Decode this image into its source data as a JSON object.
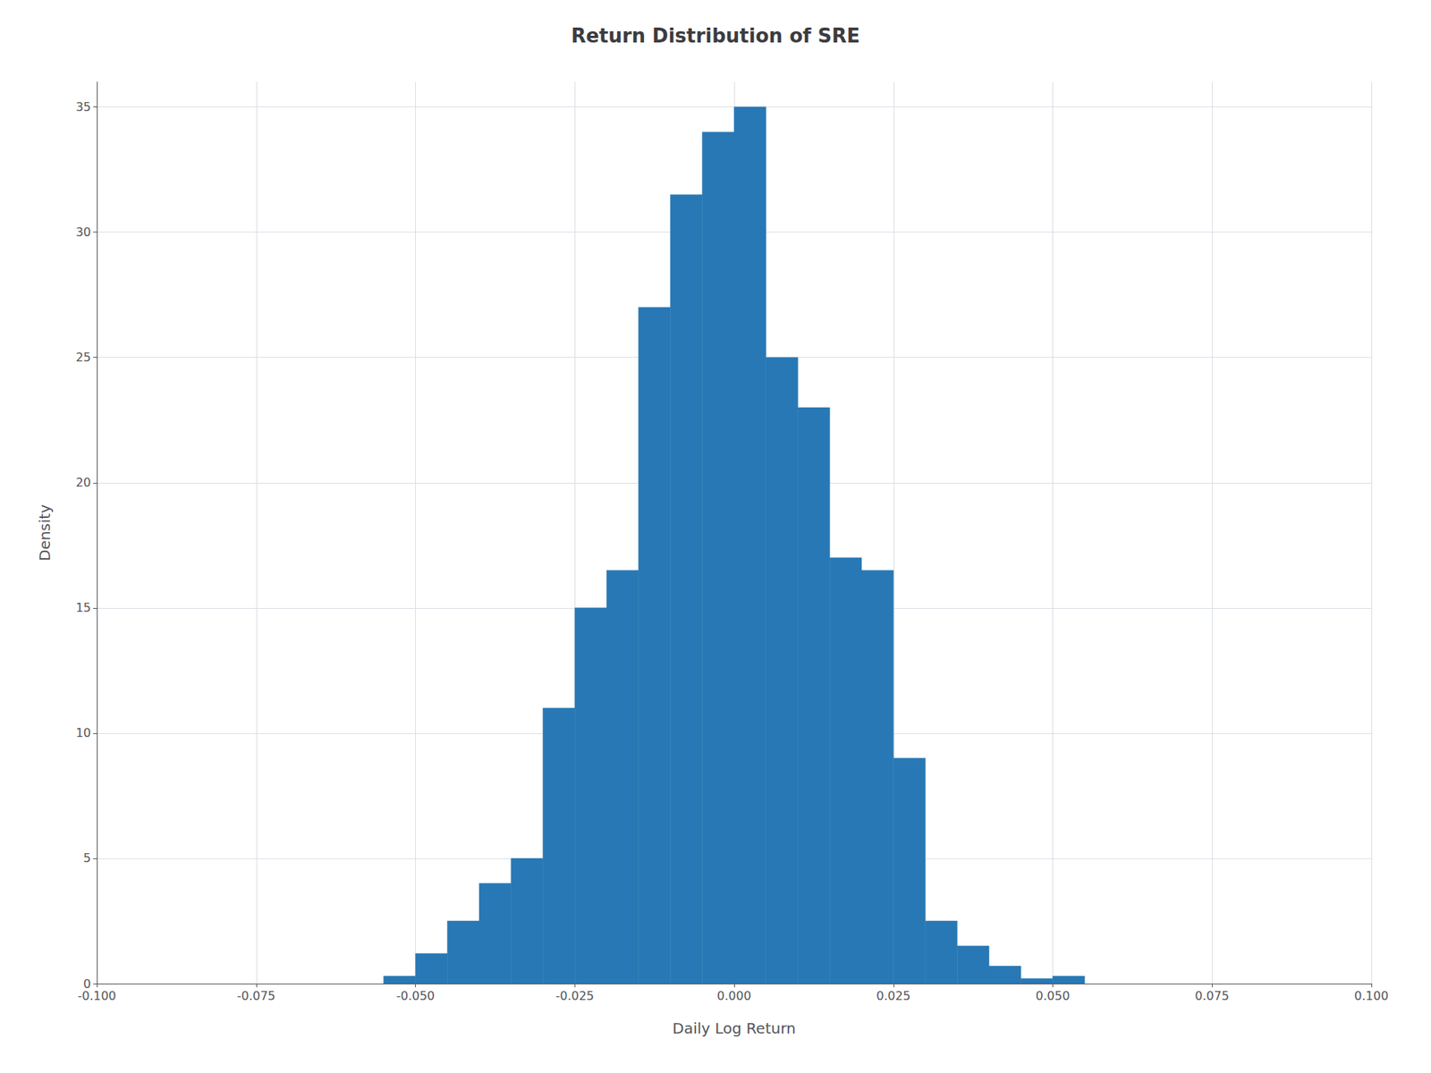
{
  "chart_data": {
    "type": "histogram",
    "title": "Return Distribution of SRE",
    "xlabel": "Daily Log Return",
    "ylabel": "Density",
    "color": "#2878b5",
    "bins": [
      -0.055,
      -0.05,
      -0.045,
      -0.04,
      -0.035,
      -0.03,
      -0.025,
      -0.02,
      -0.015,
      -0.01,
      -0.005,
      0.0,
      0.005,
      0.01,
      0.015,
      0.02,
      0.025,
      0.03,
      0.035,
      0.04,
      0.045,
      0.05,
      0.055
    ],
    "values": [
      0.3,
      1.2,
      2.5,
      4.0,
      5.0,
      11.0,
      15.0,
      16.5,
      27.0,
      31.5,
      34.0,
      35.0,
      25.0,
      23.0,
      17.0,
      16.5,
      9.0,
      2.5,
      1.5,
      0.7,
      0.2,
      0.3
    ],
    "xlim": [
      -0.1,
      0.1
    ],
    "xticks": [
      {
        "value": -0.1,
        "label": "-0.100"
      },
      {
        "value": -0.075,
        "label": "-0.075"
      },
      {
        "value": -0.05,
        "label": "-0.050"
      },
      {
        "value": -0.025,
        "label": "-0.025"
      },
      {
        "value": 0.0,
        "label": "0.000"
      },
      {
        "value": 0.025,
        "label": "0.025"
      },
      {
        "value": 0.05,
        "label": "0.050"
      },
      {
        "value": 0.075,
        "label": "0.075"
      },
      {
        "value": 0.1,
        "label": "0.100"
      }
    ],
    "ylim": [
      0,
      36
    ],
    "yticks": [
      0,
      5,
      10,
      15,
      20,
      25,
      30,
      35
    ],
    "grid": true
  }
}
